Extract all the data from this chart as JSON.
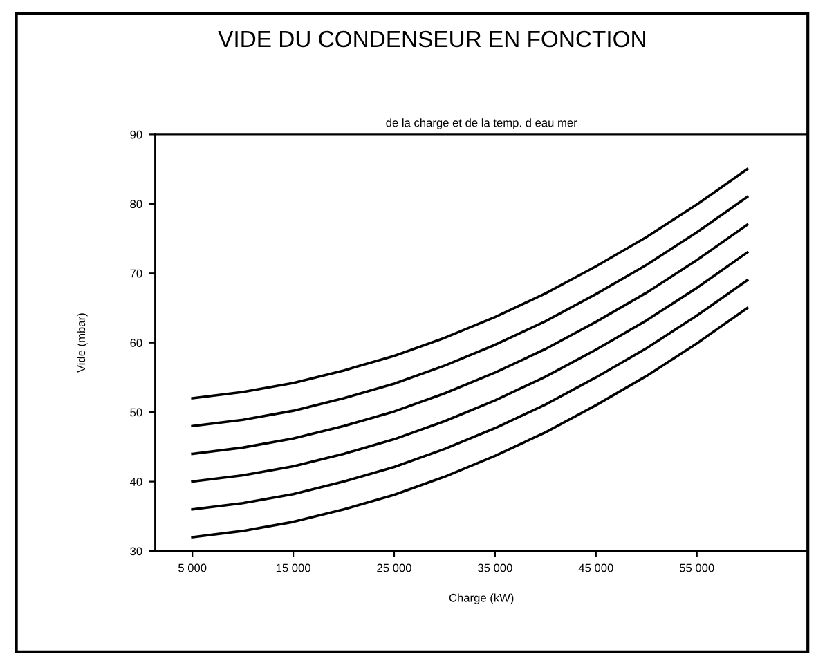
{
  "chart_data": {
    "type": "line",
    "title": "VIDE DU CONDENSEUR EN FONCTION",
    "subtitle": "de la charge et de la temp. d eau mer",
    "xlabel": "Charge (kW)",
    "ylabel": "Vide (mbar)",
    "x": [
      5000,
      10000,
      15000,
      20000,
      25000,
      30000,
      35000,
      40000,
      45000,
      50000,
      55000,
      60000
    ],
    "series": [
      {
        "color": "#000000",
        "values": [
          52,
          52.9,
          54.2,
          56,
          58.1,
          60.7,
          63.7,
          67.1,
          71,
          75.2,
          79.9,
          85
        ]
      },
      {
        "color": "#000000",
        "values": [
          48,
          48.9,
          50.2,
          52,
          54.1,
          56.7,
          59.7,
          63.1,
          67,
          71.2,
          75.9,
          81
        ]
      },
      {
        "color": "#000000",
        "values": [
          44,
          44.9,
          46.2,
          48,
          50.1,
          52.7,
          55.7,
          59.1,
          63,
          67.2,
          71.9,
          77
        ]
      },
      {
        "color": "#000000",
        "values": [
          40,
          40.9,
          42.2,
          44,
          46.1,
          48.7,
          51.7,
          55.1,
          59,
          63.2,
          67.9,
          73
        ]
      },
      {
        "color": "#000000",
        "values": [
          36,
          36.9,
          38.2,
          40,
          42.1,
          44.7,
          47.7,
          51.1,
          55,
          59.2,
          63.9,
          69
        ]
      },
      {
        "color": "#000000",
        "values": [
          32,
          32.9,
          34.2,
          36,
          38.1,
          40.7,
          43.7,
          47.1,
          51,
          55.2,
          59.9,
          65
        ]
      }
    ],
    "xlim": [
      1300,
      66000
    ],
    "ylim": [
      30,
      90
    ],
    "xticks": [
      {
        "value": 5000,
        "label": "5 000"
      },
      {
        "value": 15000,
        "label": "15 000"
      },
      {
        "value": 25000,
        "label": "25 000"
      },
      {
        "value": 35000,
        "label": "35 000"
      },
      {
        "value": 45000,
        "label": "45 000"
      },
      {
        "value": 55000,
        "label": "55 000"
      }
    ],
    "yticks": [
      30,
      40,
      50,
      60,
      70,
      80,
      90
    ],
    "grid": false,
    "legend": false,
    "marker": "none",
    "line_style": "solid"
  }
}
